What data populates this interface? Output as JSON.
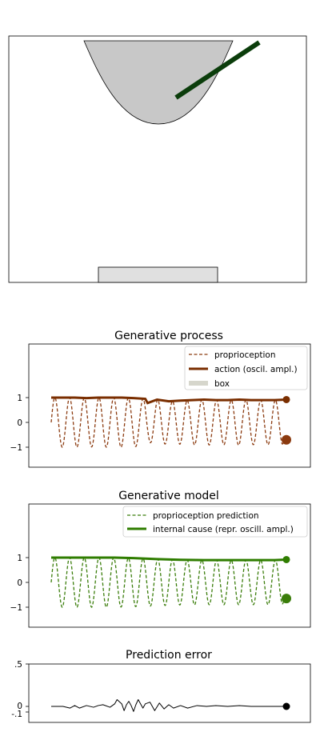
{
  "scene": {
    "bowl_fill": "#c8c8c8",
    "box_fill": "#e0e0e0",
    "arm_color": "#0b3d0b"
  },
  "chart_data": [
    {
      "type": "line",
      "title": "Generative process",
      "xlabel": "",
      "ylabel": "",
      "yticks": [
        "1",
        "0",
        "−1"
      ],
      "ylim": [
        -1.8,
        3.2
      ],
      "xlim": [
        0,
        100
      ],
      "legend": {
        "placement": "top-right",
        "entries": [
          {
            "label": "proprioception",
            "style": "dashed",
            "color": "#8b3a0f"
          },
          {
            "label": "action (oscil. ampl.)",
            "style": "solid-thick",
            "color": "#7a2e00"
          },
          {
            "label": "box",
            "style": "band",
            "color": "#d6d6cc"
          }
        ]
      },
      "oscillation": {
        "name": "proprioception",
        "color": "#8b3a0f",
        "cycles": 16,
        "final": -0.7
      },
      "amplitude": {
        "name": "action (oscil. ampl.)",
        "color": "#7a2e00",
        "x": [
          0,
          5,
          10,
          15,
          20,
          25,
          30,
          35,
          40,
          41,
          45,
          50,
          55,
          60,
          65,
          70,
          75,
          80,
          85,
          90,
          95,
          100
        ],
        "y": [
          1.0,
          1.0,
          1.0,
          0.98,
          1.0,
          1.0,
          1.0,
          0.98,
          0.95,
          0.78,
          0.92,
          0.85,
          0.88,
          0.9,
          0.92,
          0.9,
          0.9,
          0.92,
          0.9,
          0.9,
          0.9,
          0.92
        ]
      }
    },
    {
      "type": "line",
      "title": "Generative model",
      "xlabel": "",
      "ylabel": "",
      "yticks": [
        "1",
        "0",
        "−1"
      ],
      "ylim": [
        -1.8,
        3.2
      ],
      "xlim": [
        0,
        100
      ],
      "legend": {
        "placement": "top-right",
        "entries": [
          {
            "label": "proprioception prediction",
            "style": "dashed",
            "color": "#3a7d0a"
          },
          {
            "label": "internal cause (repr. oscill. ampl.)",
            "style": "solid-thick",
            "color": "#2f7d00"
          }
        ]
      },
      "oscillation": {
        "name": "proprioception prediction",
        "color": "#3a7d0a",
        "cycles": 16,
        "final": -0.65
      },
      "amplitude": {
        "name": "internal cause (repr. oscill. ampl.)",
        "color": "#2f7d00",
        "x": [
          0,
          10,
          20,
          27,
          35,
          45,
          55,
          65,
          75,
          85,
          95,
          100
        ],
        "y": [
          1.0,
          1.0,
          1.0,
          1.0,
          0.98,
          0.94,
          0.91,
          0.9,
          0.9,
          0.9,
          0.9,
          0.92
        ]
      }
    },
    {
      "type": "line",
      "title": "Prediction error",
      "xlabel": "",
      "ylabel": "",
      "yticks": [
        ".5",
        "0",
        "-.1"
      ],
      "ylim": [
        -0.15,
        0.5
      ],
      "xlim": [
        0,
        100
      ],
      "series": [
        {
          "name": "",
          "color": "#000000",
          "x": [
            0,
            5,
            8,
            10,
            12,
            15,
            18,
            20,
            22,
            25,
            27,
            28,
            30,
            31,
            32,
            33,
            34,
            35,
            36,
            37,
            38,
            39,
            40,
            42,
            44,
            46,
            48,
            50,
            52,
            55,
            58,
            62,
            66,
            70,
            75,
            80,
            85,
            90,
            95,
            100
          ],
          "y": [
            0.0,
            0.0,
            -0.02,
            0.01,
            -0.02,
            0.01,
            -0.01,
            0.01,
            0.02,
            -0.01,
            0.03,
            0.08,
            0.03,
            -0.05,
            0.02,
            0.06,
            0.01,
            -0.06,
            0.02,
            0.08,
            0.03,
            -0.02,
            0.03,
            0.05,
            -0.05,
            0.04,
            -0.03,
            0.02,
            -0.02,
            0.01,
            -0.02,
            0.01,
            0.0,
            0.01,
            0.0,
            0.01,
            0.0,
            0.0,
            0.0,
            0.0
          ]
        }
      ],
      "end_marker": {
        "color": "#000000",
        "y": 0.0
      }
    }
  ]
}
